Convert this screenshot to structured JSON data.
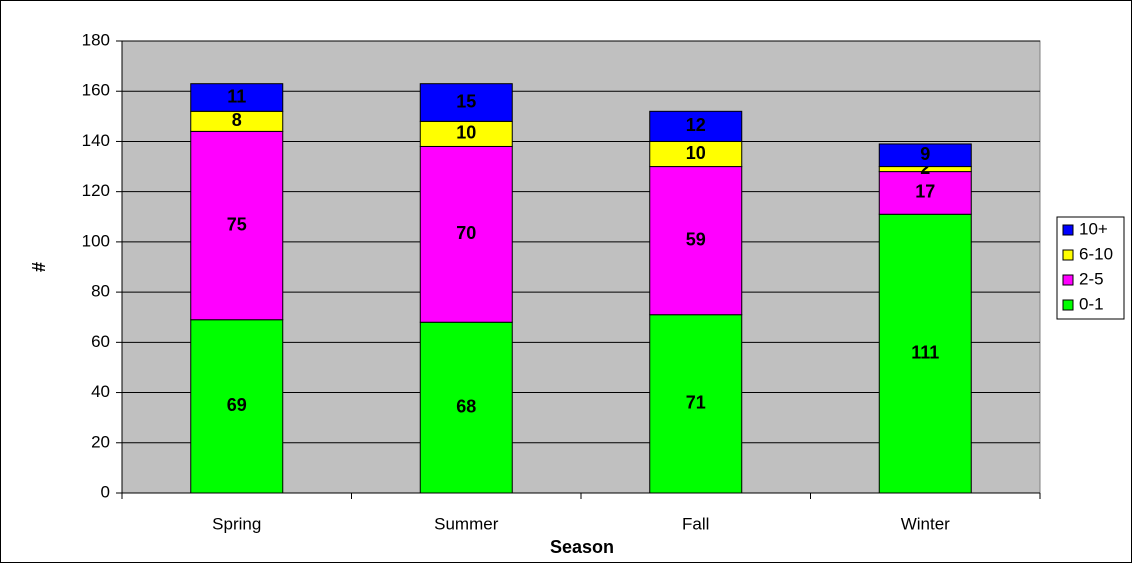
{
  "chart_data": {
    "type": "stacked_bar",
    "categories": [
      "Spring",
      "Summer",
      "Fall",
      "Winter"
    ],
    "series": [
      {
        "name": "0-1",
        "color": "#00ff00",
        "values": [
          69,
          68,
          71,
          111
        ]
      },
      {
        "name": "2-5",
        "color": "#ff00ff",
        "values": [
          75,
          70,
          59,
          17
        ]
      },
      {
        "name": "6-10",
        "color": "#ffff00",
        "values": [
          8,
          10,
          10,
          2
        ]
      },
      {
        "name": "10+",
        "color": "#0000ff",
        "values": [
          11,
          15,
          12,
          9
        ]
      }
    ],
    "xlabel": "Season",
    "ylabel": "#",
    "ylim": [
      0,
      180
    ],
    "yticks": [
      0,
      20,
      40,
      60,
      80,
      100,
      120,
      140,
      160,
      180
    ],
    "grid": true,
    "legend": "right",
    "plot_background": "#c0c0c0"
  }
}
